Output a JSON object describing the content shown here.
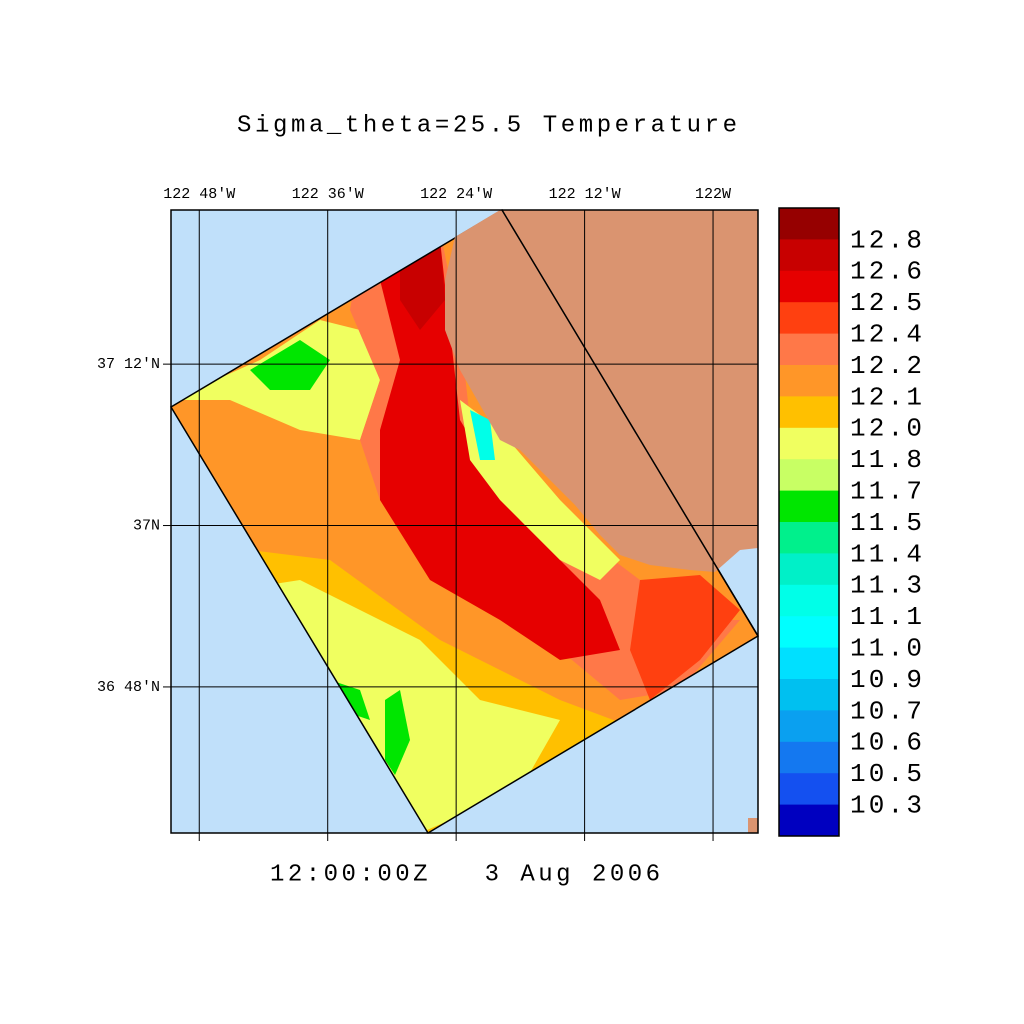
{
  "chart_data": {
    "type": "map",
    "title": "Sigma_theta=25.5 Temperature",
    "annotation": "12:00:00Z   3 Aug 2006",
    "xlim": [
      -122.844,
      -121.93
    ],
    "ylim": [
      36.619,
      37.391
    ],
    "xticks": [
      {
        "value": -122.8,
        "label": "122 48'W"
      },
      {
        "value": -122.6,
        "label": "122 36'W"
      },
      {
        "value": -122.4,
        "label": "122 24'W"
      },
      {
        "value": -122.2,
        "label": "122 12'W"
      },
      {
        "value": -122.0,
        "label": "122W"
      }
    ],
    "yticks": [
      {
        "value": 37.2,
        "label": "37 12'N"
      },
      {
        "value": 37.0,
        "label": "37N"
      },
      {
        "value": 36.8,
        "label": "36 48'N"
      }
    ],
    "grid": true,
    "colorbar": {
      "levels": [
        12.8,
        12.6,
        12.5,
        12.4,
        12.2,
        12.1,
        {
          "value": 12,
          "label": "12.0"
        },
        11.8,
        11.7,
        11.5,
        11.4,
        11.3,
        11.1,
        {
          "value": 11,
          "label": "11.0"
        },
        10.9,
        10.7,
        10.6,
        10.5,
        10.3
      ],
      "colors": [
        "#960000",
        "#c80000",
        "#e60000",
        "#ff4010",
        "#ff7848",
        "#ff9628",
        "#ffc000",
        "#f0ff60",
        "#c8ff64",
        "#00e600",
        "#00f08c",
        "#00f0c8",
        "#00ffe8",
        "#00ffff",
        "#00e0ff",
        "#00c0f0",
        "#0aa0f0",
        "#1478f0",
        "#1450f0",
        "#0000c0"
      ]
    }
  }
}
